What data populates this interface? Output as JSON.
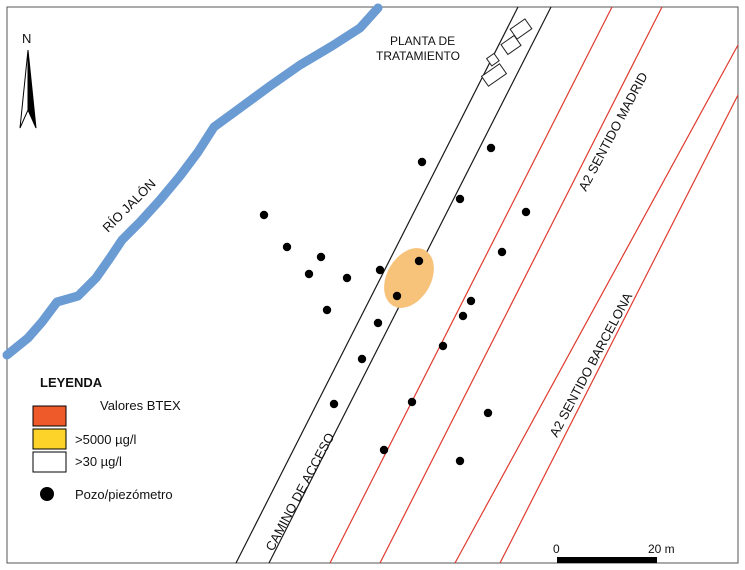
{
  "north_label": "N",
  "river_label": "RÍO JALÓN",
  "plant_label_line1": "PLANTA DE",
  "plant_label_line2": "TRATAMIENTO",
  "road_madrid_label": "A2 SENTIDO MADRID",
  "road_barcelona_label": "A2 SENTIDO BARCELONA",
  "access_road_label": "CAMINO DE ACCESO",
  "legend": {
    "title": "LEYENDA",
    "btex_header": "Valores BTEX",
    "items": [
      {
        "label": "",
        "color": "#ef5a2a"
      },
      {
        "label": ">5000 µg/l",
        "color": "#fdd32a"
      },
      {
        "label": ">30 µg/l",
        "color": "#ffffff"
      }
    ],
    "well_label": "Pozo/piezómetro"
  },
  "scale": {
    "start_label": "0",
    "end_label": "20 m"
  },
  "colors": {
    "river": "#6b9bd3",
    "highway_lines": "#e03a2f",
    "access_lines": "#1a1a1a",
    "plume": "#f7c27a",
    "wells": "#000000"
  }
}
